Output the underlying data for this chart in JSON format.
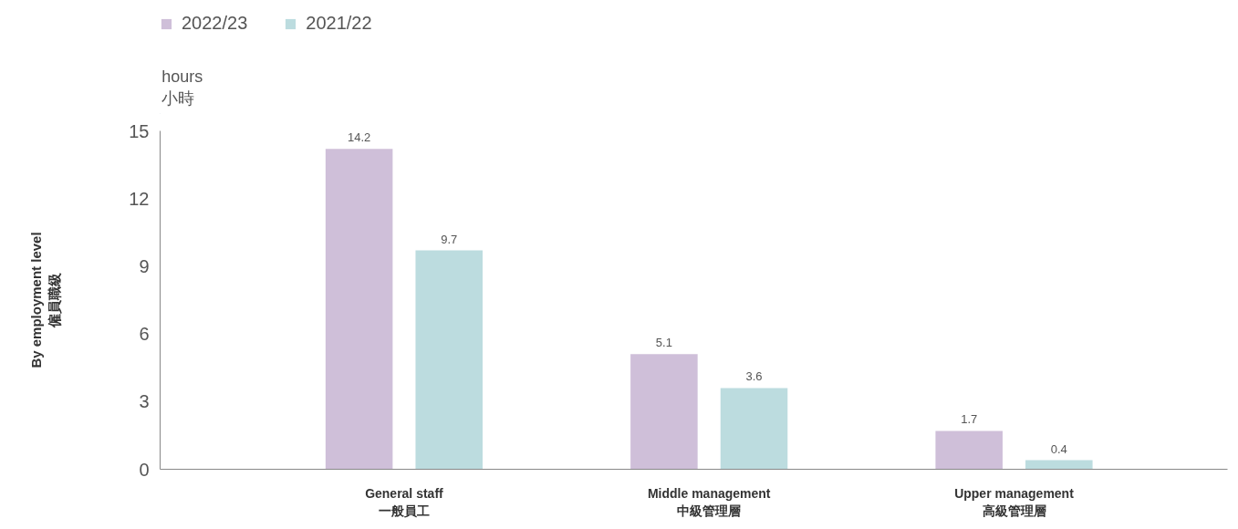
{
  "chart_data": {
    "type": "bar",
    "ylabel": "By employment level\n僱員職級",
    "annotations": [
      "hours\n小時"
    ],
    "categories": [
      "General staff\n一般員工",
      "Middle management\n中級管理層",
      "Upper management\n高級管理層"
    ],
    "series": [
      {
        "name": "2022/23",
        "color": "#cfbfd9",
        "values": [
          14.2,
          5.1,
          1.7
        ]
      },
      {
        "name": "2021/22",
        "color": "#bcdcdf",
        "values": [
          9.7,
          3.6,
          0.4
        ]
      }
    ],
    "ylim": [
      0,
      15
    ],
    "yticks": [
      0,
      3,
      6,
      9,
      12,
      15
    ],
    "data_labels": true,
    "legend": "top left",
    "grid": false
  }
}
